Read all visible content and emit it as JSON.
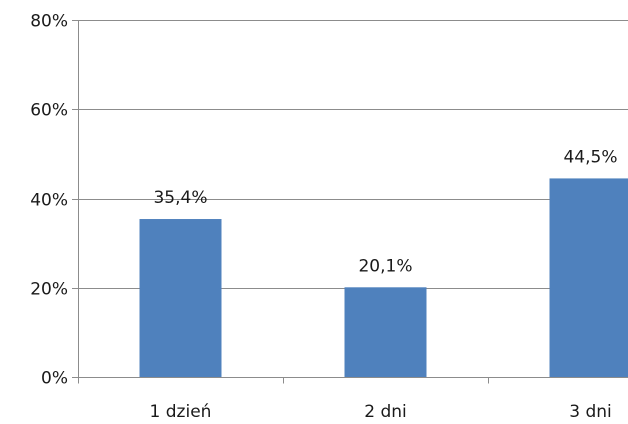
{
  "chart_data": {
    "type": "bar",
    "categories": [
      "1 dzień",
      "2 dni",
      "3 dni"
    ],
    "values": [
      35.4,
      20.1,
      44.5
    ],
    "data_labels": [
      "35,4%",
      "20,1%",
      "44,5%"
    ],
    "title": "",
    "xlabel": "",
    "ylabel": "",
    "ylim": [
      0,
      80
    ],
    "yticks": [
      0,
      20,
      40,
      60,
      80
    ],
    "ytick_labels": [
      "0%",
      "20%",
      "40%",
      "60%",
      "80%"
    ],
    "grid": true,
    "legend": "none",
    "bar_color": "#4f81bd"
  }
}
